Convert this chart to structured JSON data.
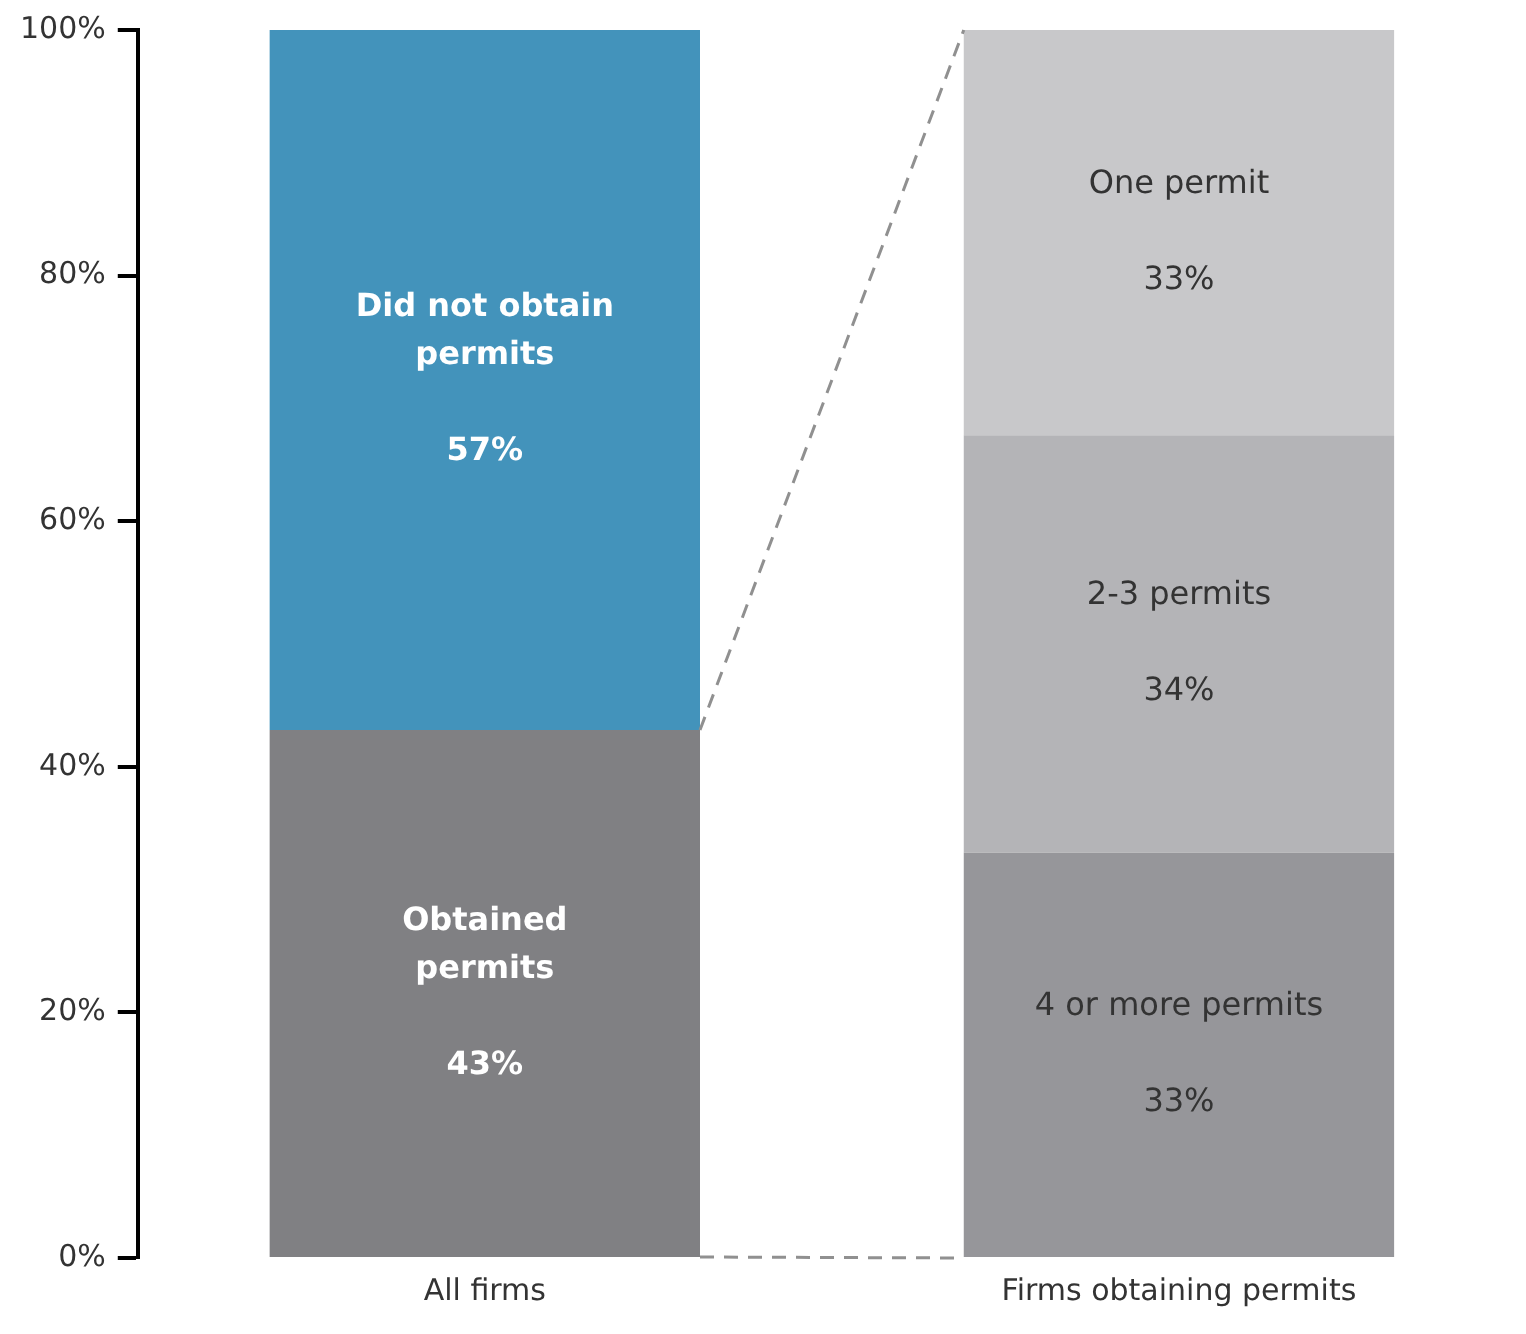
{
  "chart_data": {
    "type": "bar",
    "stacked": true,
    "categories": [
      "All firms",
      "Firms obtaining permits"
    ],
    "series": [
      {
        "name": "Obtained permits",
        "color": "#808083",
        "values": [
          43,
          null
        ],
        "value_labels": [
          "43%",
          null
        ]
      },
      {
        "name": "Did not obtain permits",
        "color": "#4393bb",
        "values": [
          57,
          null
        ],
        "value_labels": [
          "57%",
          null
        ]
      },
      {
        "name": "4 or more permits",
        "color": "#96969a",
        "values": [
          null,
          33
        ],
        "value_labels": [
          null,
          "33%"
        ]
      },
      {
        "name": "2-3 permits",
        "color": "#b4b4b7",
        "values": [
          null,
          34
        ],
        "value_labels": [
          null,
          "34%"
        ]
      },
      {
        "name": "One permit",
        "color": "#c8c8ca",
        "values": [
          null,
          33
        ],
        "value_labels": [
          null,
          "33%"
        ]
      }
    ],
    "ylim": [
      0,
      100
    ],
    "yticks": [
      {
        "value": 0,
        "label": "0%"
      },
      {
        "value": 20,
        "label": "20%"
      },
      {
        "value": 40,
        "label": "40%"
      },
      {
        "value": 60,
        "label": "60%"
      },
      {
        "value": 80,
        "label": "80%"
      },
      {
        "value": 100,
        "label": "100%"
      }
    ],
    "grid": false,
    "legend": false
  }
}
